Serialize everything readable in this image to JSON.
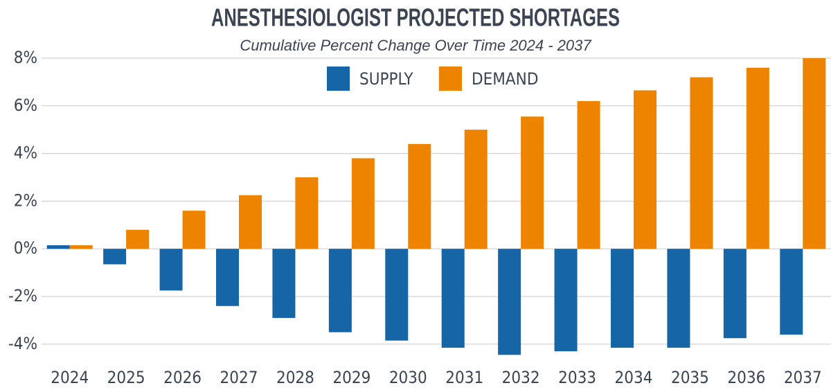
{
  "chart_data": {
    "type": "bar",
    "title": "ANESTHESIOLOGIST PROJECTED SHORTAGES",
    "subtitle": "Cumulative Percent Change Over Time 2024 - 2037",
    "categories": [
      "2024",
      "2025",
      "2026",
      "2027",
      "2028",
      "2029",
      "2030",
      "2031",
      "2032",
      "2033",
      "2034",
      "2035",
      "2036",
      "2037"
    ],
    "series": [
      {
        "name": "SUPPLY",
        "color": "#1565a7",
        "values": [
          0.15,
          -0.65,
          -1.75,
          -2.4,
          -2.9,
          -3.5,
          -3.85,
          -4.15,
          -4.45,
          -4.3,
          -4.15,
          -4.15,
          -3.75,
          -3.6
        ]
      },
      {
        "name": "DEMAND",
        "color": "#ee8300",
        "values": [
          0.15,
          0.8,
          1.6,
          2.25,
          3.0,
          3.8,
          4.4,
          5.0,
          5.55,
          6.2,
          6.65,
          7.2,
          7.6,
          8.0
        ]
      }
    ],
    "ylim": [
      -4.5,
      8
    ],
    "yticks": [
      {
        "value": -4,
        "label": "-4%"
      },
      {
        "value": -2,
        "label": "-2%"
      },
      {
        "value": 0,
        "label": "0%"
      },
      {
        "value": 2,
        "label": "2%"
      },
      {
        "value": 4,
        "label": "4%"
      },
      {
        "value": 6,
        "label": "6%"
      },
      {
        "value": 8,
        "label": "8%"
      }
    ],
    "grid": true
  }
}
